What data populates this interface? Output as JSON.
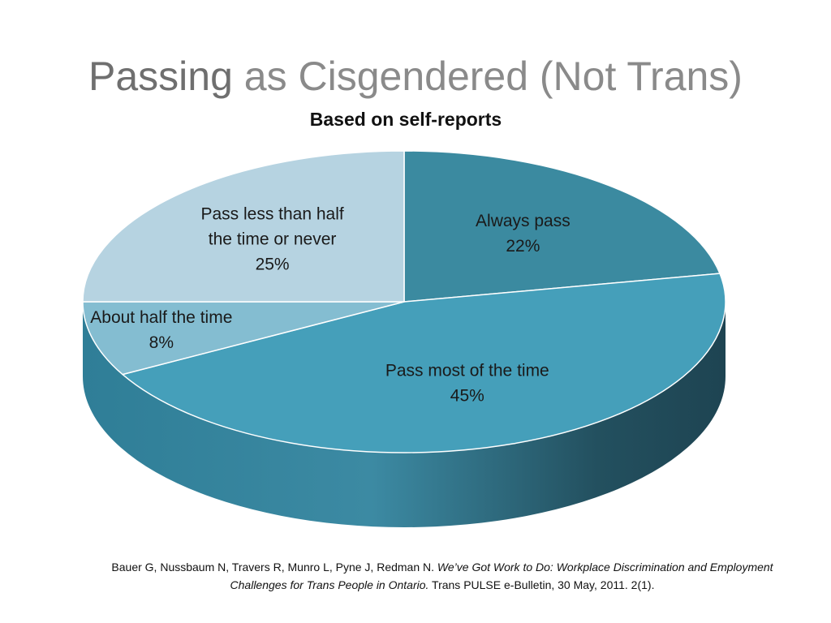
{
  "slide": {
    "title_part1": "Passing",
    "title_part2": " as Cisgendered (Not Trans)",
    "subtitle": "Based on self-reports"
  },
  "citation": {
    "authors": "Bauer G, Nussbaum N, Travers R, Munro L, Pyne J, Redman N. ",
    "title": "We’ve Got Work to Do: Workplace Discrimination and Employment Challenges for Trans People in Ontario.",
    "source": " Trans PULSE e-Bulletin, 30 May, 2011. 2(1)."
  },
  "chart_data": {
    "type": "pie",
    "title": "",
    "slices": [
      {
        "label_lines": [
          "Always pass"
        ],
        "value": 22,
        "display": "22%",
        "color": "#3b8aa0"
      },
      {
        "label_lines": [
          "Pass most of the time"
        ],
        "value": 45,
        "display": "45%",
        "color": "#459fba"
      },
      {
        "label_lines": [
          "About half the time"
        ],
        "value": 8,
        "display": "8%",
        "color": "#84bdd1"
      },
      {
        "label_lines": [
          "Pass less than half",
          "the time or never"
        ],
        "value": 25,
        "display": "25%",
        "color": "#b6d3e1"
      }
    ],
    "legend": "none"
  }
}
